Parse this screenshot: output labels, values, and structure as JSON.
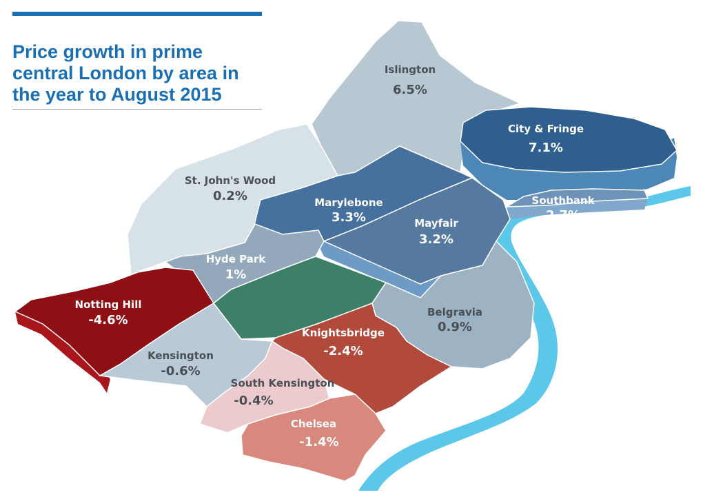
{
  "title": "Price growth in prime central London by area in the year to August 2015",
  "colors": {
    "title": "#1a6fb3",
    "river": "#5bc8ea",
    "park": "#3e7f68",
    "strong_growth": "#2f5b86",
    "moderate_growth": "#5679a0",
    "low_growth": "#bccbd5",
    "decline_strong": "#8e0f14",
    "decline_mid": "#b24a3c",
    "decline_low": "#d68a7e"
  },
  "areas": [
    {
      "name": "Islington",
      "value": "6.5%",
      "growth": 6.5
    },
    {
      "name": "City & Fringe",
      "value": "7.1%",
      "growth": 7.1
    },
    {
      "name": "St. John's Wood",
      "value": "0.2%",
      "growth": 0.2
    },
    {
      "name": "Marylebone",
      "value": "3.3%",
      "growth": 3.3
    },
    {
      "name": "Southbank",
      "value": "2.7%",
      "growth": 2.7
    },
    {
      "name": "Mayfair",
      "value": "3.2%",
      "growth": 3.2
    },
    {
      "name": "Hyde Park",
      "value": "1%",
      "growth": 1.0
    },
    {
      "name": "Notting Hill",
      "value": "-4.6%",
      "growth": -4.6
    },
    {
      "name": "Belgravia",
      "value": "0.9%",
      "growth": 0.9
    },
    {
      "name": "Knightsbridge",
      "value": "-2.4%",
      "growth": -2.4
    },
    {
      "name": "Kensington",
      "value": "-0.6%",
      "growth": -0.6
    },
    {
      "name": "South Kensington",
      "value": "-0.4%",
      "growth": -0.4
    },
    {
      "name": "Chelsea",
      "value": "-1.4%",
      "growth": -1.4
    }
  ]
}
